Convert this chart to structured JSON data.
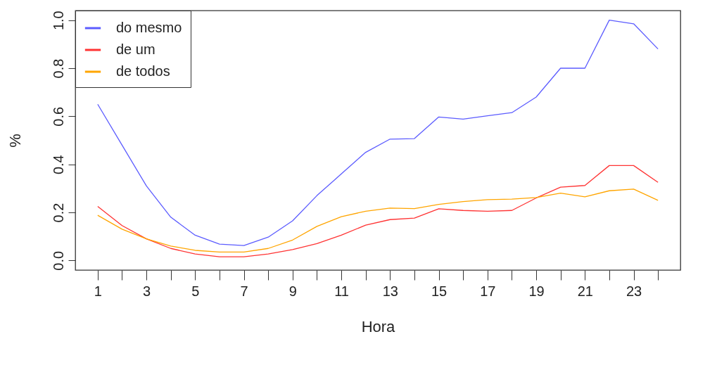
{
  "chart_data": {
    "type": "line",
    "xlabel": "Hora",
    "ylabel": "%",
    "x": [
      1,
      2,
      3,
      4,
      5,
      6,
      7,
      8,
      9,
      10,
      11,
      12,
      13,
      14,
      15,
      16,
      17,
      18,
      19,
      20,
      21,
      22,
      23,
      24
    ],
    "xlim": [
      0.08,
      24.92
    ],
    "ylim": [
      -0.04,
      1.04
    ],
    "xticks": [
      1,
      {
        "value": 2,
        "label": null
      },
      3,
      {
        "value": 4,
        "label": null
      },
      5,
      {
        "value": 6,
        "label": null
      },
      7,
      {
        "value": 8,
        "label": null
      },
      9,
      {
        "value": 10,
        "label": null
      },
      11,
      {
        "value": 12,
        "label": null
      },
      13,
      {
        "value": 14,
        "label": null
      },
      15,
      {
        "value": 16,
        "label": null
      },
      17,
      {
        "value": 18,
        "label": null
      },
      19,
      {
        "value": 20,
        "label": null
      },
      21,
      {
        "value": 22,
        "label": null
      },
      23,
      {
        "value": 24,
        "label": null
      }
    ],
    "yticks": [
      {
        "value": 0,
        "label": "0.0"
      },
      {
        "value": 0.2,
        "label": "0.2"
      },
      {
        "value": 0.4,
        "label": "0.4"
      },
      {
        "value": 0.6,
        "label": "0.6"
      },
      {
        "value": 0.8,
        "label": "0.8"
      },
      {
        "value": 1,
        "label": "1.0"
      }
    ],
    "grid": false,
    "legend": "top left",
    "marker": "none",
    "line_style": "solid",
    "series": [
      {
        "name": "do mesmo",
        "color": "#5c5cff",
        "values": [
          0.65,
          0.48,
          0.31,
          0.18,
          0.105,
          0.068,
          0.062,
          0.097,
          0.165,
          0.27,
          0.36,
          0.45,
          0.505,
          0.507,
          0.597,
          0.588,
          0.602,
          0.615,
          0.68,
          0.8,
          0.8,
          1.0,
          0.985,
          0.88
        ]
      },
      {
        "name": "de um",
        "color": "#ff3333",
        "values": [
          0.225,
          0.145,
          0.09,
          0.05,
          0.027,
          0.015,
          0.015,
          0.027,
          0.045,
          0.07,
          0.105,
          0.147,
          0.17,
          0.176,
          0.215,
          0.208,
          0.205,
          0.208,
          0.26,
          0.305,
          0.312,
          0.395,
          0.395,
          0.325
        ]
      },
      {
        "name": "de todos",
        "color": "#ffa500",
        "values": [
          0.188,
          0.13,
          0.09,
          0.06,
          0.042,
          0.035,
          0.035,
          0.05,
          0.085,
          0.142,
          0.182,
          0.205,
          0.218,
          0.216,
          0.233,
          0.245,
          0.253,
          0.255,
          0.262,
          0.28,
          0.265,
          0.29,
          0.297,
          0.25
        ]
      }
    ]
  }
}
